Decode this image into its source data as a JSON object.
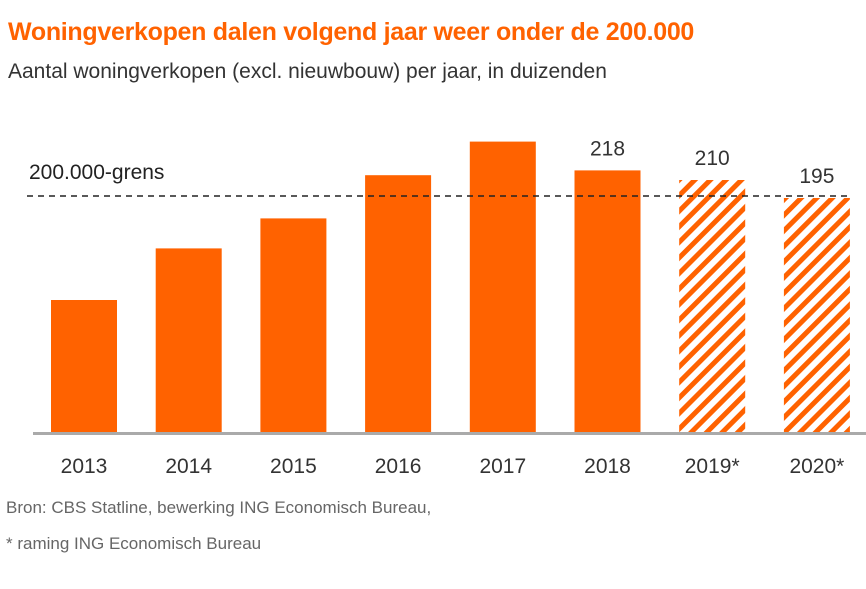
{
  "header": {
    "title": "Woningverkopen dalen volgend jaar weer onder de 200.000",
    "subtitle": "Aantal woningverkopen (excl. nieuwbouw) per jaar, in duizenden"
  },
  "footer": {
    "source": "Bron: CBS Statline, bewerking ING Economisch Bureau,",
    "note": "* raming ING Economisch Bureau"
  },
  "colors": {
    "bar": "#ff6200",
    "axis": "#aaaaaa",
    "reference_line": "#222222"
  },
  "chart_data": {
    "type": "bar",
    "title": "Woningverkopen dalen volgend jaar weer onder de 200.000",
    "subtitle": "Aantal woningverkopen (excl. nieuwbouw) per jaar, in duizenden",
    "xlabel": "",
    "ylabel": "",
    "categories": [
      "2013",
      "2014",
      "2015",
      "2016",
      "2017",
      "2018",
      "2019*",
      "2020*"
    ],
    "values": [
      110,
      153,
      178,
      214,
      242,
      218,
      210,
      195
    ],
    "forecast": [
      false,
      false,
      false,
      false,
      false,
      false,
      true,
      true
    ],
    "data_labels": [
      "",
      "",
      "",
      "",
      "",
      "218",
      "210",
      "195"
    ],
    "ylim": [
      0,
      260
    ],
    "grid": false,
    "legend": "none",
    "reference_line": {
      "value": 200,
      "label": "200.000-grens",
      "style": "dashed"
    },
    "series": [
      {
        "name": "Aantal woningverkopen",
        "values": [
          110,
          153,
          178,
          214,
          242,
          218,
          210,
          195
        ]
      }
    ]
  }
}
